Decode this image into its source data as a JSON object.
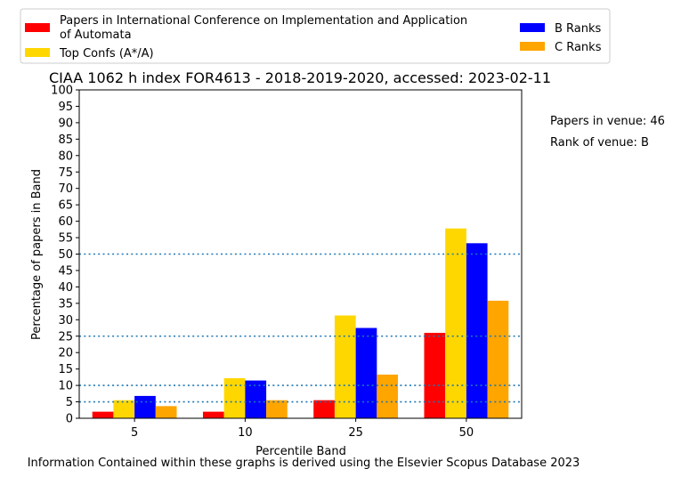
{
  "chart_data": {
    "type": "bar",
    "title": "CIAA 1062 h index FOR4613 - 2018-2019-2020, accessed: 2023-02-11",
    "xlabel": "Percentile Band",
    "ylabel": "Percentage of papers in Band",
    "categories": [
      "5",
      "10",
      "25",
      "50"
    ],
    "ylim": [
      0,
      100
    ],
    "yticks": [
      0,
      5,
      10,
      15,
      20,
      25,
      30,
      35,
      40,
      45,
      50,
      55,
      60,
      65,
      70,
      75,
      80,
      85,
      90,
      95,
      100
    ],
    "reference_lines": [
      5,
      10,
      25,
      50
    ],
    "reference_line_color": "#1f77b4",
    "series": [
      {
        "name": "Papers in International Conference on Implementation and Application of Automata",
        "color": "#ff0000",
        "values": [
          2.0,
          2.0,
          5.5,
          26.0
        ]
      },
      {
        "name": "Top Confs (A*/A)",
        "color": "#ffd700",
        "values": [
          5.5,
          12.2,
          31.3,
          57.8
        ]
      },
      {
        "name": "B Ranks",
        "color": "#0000ff",
        "values": [
          6.8,
          11.5,
          27.5,
          53.3
        ]
      },
      {
        "name": "C Ranks",
        "color": "#ffa500",
        "values": [
          3.7,
          5.5,
          13.3,
          35.8
        ]
      }
    ],
    "legend": {
      "placement": "top",
      "entries": [
        {
          "series": 0,
          "line1": "Papers in International Conference on Implementation and Application",
          "line2": "of Automata"
        },
        {
          "series": 1,
          "line1": "Top Confs (A*/A)"
        },
        {
          "series": 2,
          "line1": "B Ranks"
        },
        {
          "series": 3,
          "line1": "C Ranks"
        }
      ]
    }
  },
  "annotations": {
    "papers_in_venue": "Papers in venue: 46",
    "rank_of_venue": "Rank of venue: B"
  },
  "footer": "Information Contained within these graphs is derived using the Elsevier Scopus Database 2023"
}
